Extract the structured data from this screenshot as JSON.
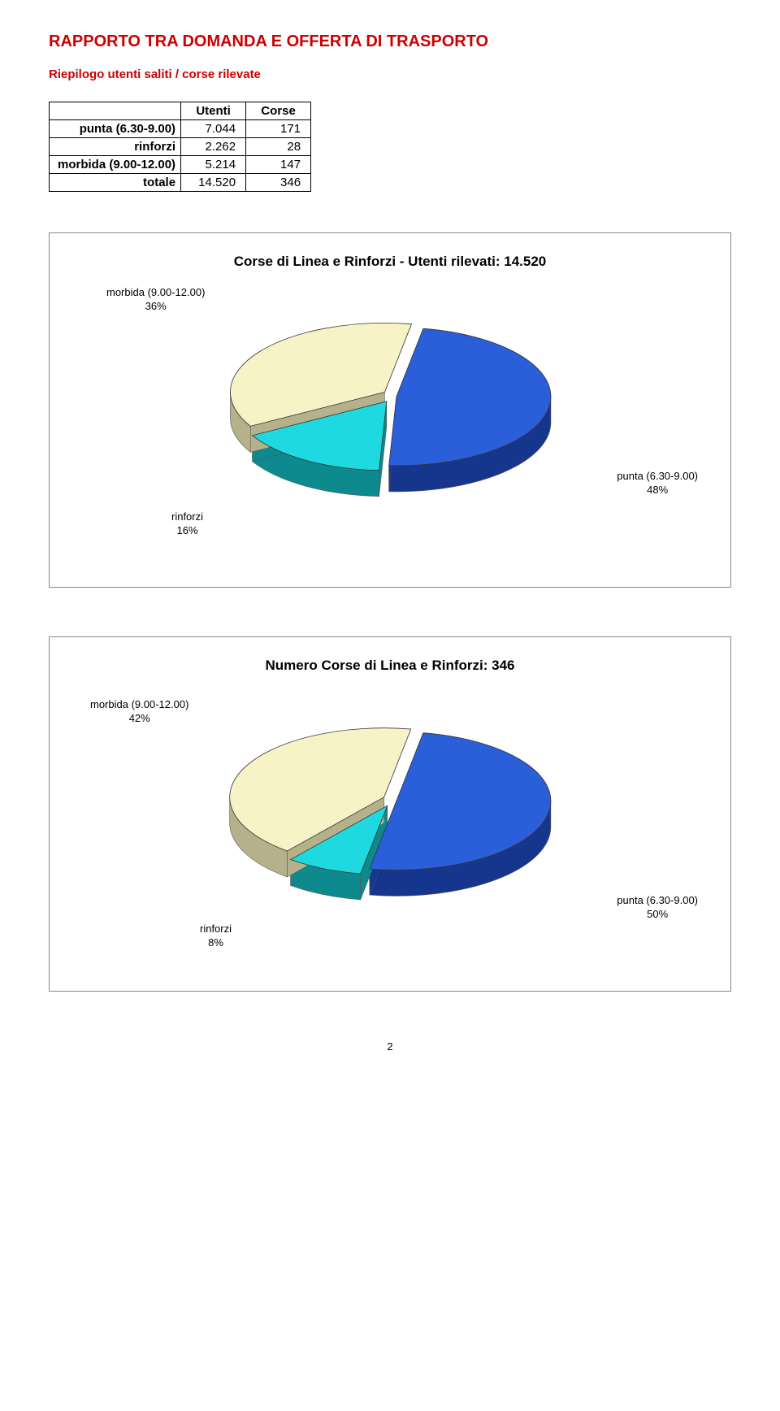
{
  "title": "RAPPORTO TRA DOMANDA E OFFERTA DI TRASPORTO",
  "subtitle": "Riepilogo utenti saliti / corse rilevate",
  "summary_table": {
    "columns": [
      "Utenti",
      "Corse"
    ],
    "rows": [
      {
        "label": "punta (6.30-9.00)",
        "utenti": "7.044",
        "corse": "171"
      },
      {
        "label": "rinforzi",
        "utenti": "2.262",
        "corse": "28"
      },
      {
        "label": "morbida (9.00-12.00)",
        "utenti": "5.214",
        "corse": "147"
      },
      {
        "label": "totale",
        "utenti": "14.520",
        "corse": "346"
      }
    ]
  },
  "chart1": {
    "title": "Corse di Linea e Rinforzi - Utenti rilevati: 14.520",
    "type": "pie",
    "slices": [
      {
        "name": "punta (6.30-9.00)",
        "pct": 48,
        "color": "#2b5fd9",
        "side_color": "#16368e"
      },
      {
        "name": "rinforzi",
        "pct": 16,
        "color": "#1fd9e0",
        "side_color": "#0d8a8e"
      },
      {
        "name": "morbida (9.00-12.00)",
        "pct": 36,
        "color": "#f7f3c7",
        "side_color": "#b5b18a"
      }
    ],
    "labels": {
      "morbida": {
        "line1": "morbida (9.00-12.00)",
        "line2": "36%"
      },
      "rinforzi": {
        "line1": "rinforzi",
        "line2": "16%"
      },
      "punta": {
        "line1": "punta (6.30-9.00)",
        "line2": "48%"
      }
    }
  },
  "chart2": {
    "title": "Numero Corse di Linea e Rinforzi: 346",
    "type": "pie",
    "slices": [
      {
        "name": "punta (6.30-9.00)",
        "pct": 50,
        "color": "#2b5fd9",
        "side_color": "#16368e"
      },
      {
        "name": "rinforzi",
        "pct": 8,
        "color": "#1fd9e0",
        "side_color": "#0d8a8e"
      },
      {
        "name": "morbida (9.00-12.00)",
        "pct": 42,
        "color": "#f7f3c7",
        "side_color": "#b5b18a"
      }
    ],
    "labels": {
      "morbida": {
        "line1": "morbida (9.00-12.00)",
        "line2": "42%"
      },
      "rinforzi": {
        "line1": "rinforzi",
        "line2": "8%"
      },
      "punta": {
        "line1": "punta (6.30-9.00)",
        "line2": "50%"
      }
    }
  },
  "page_number": "2",
  "colors": {
    "accent_red": "#cc0000",
    "panel_border": "#888888",
    "text": "#000000"
  },
  "sizes": {
    "title_font": 20,
    "subtitle_font": 15,
    "chart_title_font": 17,
    "label_font": 13
  }
}
